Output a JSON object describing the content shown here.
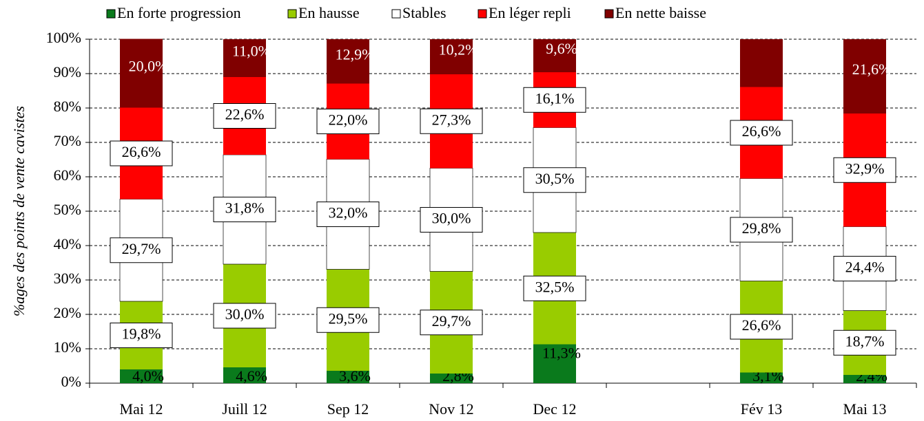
{
  "chart_data": {
    "type": "stacked_bar",
    "y_label": "%ages des points de vente cavistes",
    "categories": [
      "Mai 12",
      "Juill 12",
      "Sep 12",
      "Nov 12",
      "Dec 12",
      null,
      "Fév 13",
      "Mai 13"
    ],
    "series": [
      {
        "name": "En forte progression",
        "color": "#0a7a1c",
        "values": [
          4.0,
          4.6,
          3.6,
          2.8,
          11.3,
          null,
          3.1,
          2.4
        ],
        "value_labels": [
          "4,0%",
          "4,6%",
          "3,6%",
          "2,8%",
          "11,3%",
          null,
          "3,1%",
          "2,4%"
        ]
      },
      {
        "name": "En hausse",
        "color": "#99cc00",
        "values": [
          19.8,
          30.0,
          29.5,
          29.7,
          32.5,
          null,
          26.6,
          18.7
        ],
        "value_labels": [
          "19,8%",
          "30,0%",
          "29,5%",
          "29,7%",
          "32,5%",
          null,
          "26,6%",
          "18,7%"
        ]
      },
      {
        "name": "Stables",
        "color": "#ffffff",
        "values": [
          29.7,
          31.8,
          32.0,
          30.0,
          30.5,
          null,
          29.8,
          24.4
        ],
        "value_labels": [
          "29,7%",
          "31,8%",
          "32,0%",
          "30,0%",
          "30,5%",
          null,
          "29,8%",
          "24,4%"
        ]
      },
      {
        "name": "En léger repli",
        "color": "#ff0000",
        "values": [
          26.6,
          22.6,
          22.0,
          27.3,
          16.1,
          null,
          26.6,
          32.9
        ],
        "value_labels": [
          "26,6%",
          "22,6%",
          "22,0%",
          "27,3%",
          "16,1%",
          null,
          "26,6%",
          "32,9%"
        ]
      },
      {
        "name": "En nette baisse",
        "color": "#800000",
        "values": [
          20.0,
          11.0,
          12.9,
          10.2,
          9.6,
          null,
          13.9,
          21.6
        ],
        "value_labels": [
          "20,0%",
          "11,0%",
          "12,9%",
          "10,2%",
          "9,6%",
          null,
          null,
          "21,6%"
        ]
      }
    ],
    "ylim": [
      0,
      100
    ],
    "yticks": [
      {
        "value": 0,
        "label": "0%"
      },
      {
        "value": 10,
        "label": "10%"
      },
      {
        "value": 20,
        "label": "20%"
      },
      {
        "value": 30,
        "label": "30%"
      },
      {
        "value": 40,
        "label": "40%"
      },
      {
        "value": 50,
        "label": "50%"
      },
      {
        "value": 60,
        "label": "60%"
      },
      {
        "value": 70,
        "label": "70%"
      },
      {
        "value": 80,
        "label": "80%"
      },
      {
        "value": 90,
        "label": "90%"
      },
      {
        "value": 100,
        "label": "100%"
      }
    ],
    "grid": true,
    "legend": "top"
  }
}
